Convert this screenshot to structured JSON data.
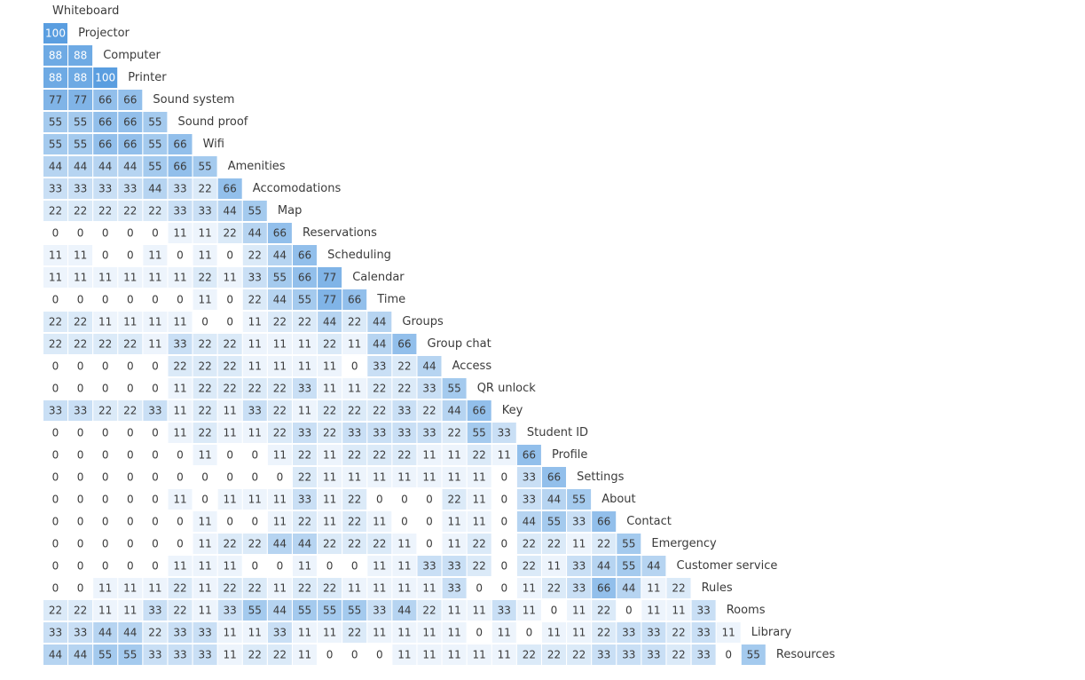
{
  "chart_data": {
    "type": "heatmap",
    "layout": "lower-triangular similarity matrix",
    "value_range": [
      0,
      100
    ],
    "color_scale": {
      "low": "#ffffff",
      "high": "#5a9ee0"
    },
    "labels": [
      "Whiteboard",
      "Projector",
      "Computer",
      "Printer",
      "Sound system",
      "Sound proof",
      "Wifi",
      "Amenities",
      "Accomodations",
      "Map",
      "Reservations",
      "Scheduling",
      "Calendar",
      "Time",
      "Groups",
      "Group chat",
      "Access",
      "QR unlock",
      "Key",
      "Student ID",
      "Profile",
      "Settings",
      "About",
      "Contact",
      "Emergency",
      "Customer service",
      "Rules",
      "Rooms",
      "Library",
      "Resources"
    ],
    "rows": [
      [],
      [
        100
      ],
      [
        88,
        88
      ],
      [
        88,
        88,
        100
      ],
      [
        77,
        77,
        66,
        66
      ],
      [
        55,
        55,
        66,
        66,
        55
      ],
      [
        55,
        55,
        66,
        66,
        55,
        66
      ],
      [
        44,
        44,
        44,
        44,
        55,
        66,
        55
      ],
      [
        33,
        33,
        33,
        33,
        44,
        33,
        22,
        66
      ],
      [
        22,
        22,
        22,
        22,
        22,
        33,
        33,
        44,
        55
      ],
      [
        0,
        0,
        0,
        0,
        0,
        11,
        11,
        22,
        44,
        66
      ],
      [
        11,
        11,
        0,
        0,
        11,
        0,
        11,
        0,
        22,
        44,
        66
      ],
      [
        11,
        11,
        11,
        11,
        11,
        11,
        22,
        11,
        33,
        55,
        66,
        77
      ],
      [
        0,
        0,
        0,
        0,
        0,
        0,
        11,
        0,
        22,
        44,
        55,
        77,
        66
      ],
      [
        22,
        22,
        11,
        11,
        11,
        11,
        0,
        0,
        11,
        22,
        22,
        44,
        22,
        44
      ],
      [
        22,
        22,
        22,
        22,
        11,
        33,
        22,
        22,
        11,
        11,
        11,
        22,
        11,
        44,
        66
      ],
      [
        0,
        0,
        0,
        0,
        0,
        22,
        22,
        22,
        11,
        11,
        11,
        11,
        0,
        33,
        22,
        44
      ],
      [
        0,
        0,
        0,
        0,
        0,
        11,
        22,
        22,
        22,
        22,
        33,
        11,
        11,
        22,
        22,
        33,
        55
      ],
      [
        33,
        33,
        22,
        22,
        33,
        11,
        22,
        11,
        33,
        22,
        11,
        22,
        22,
        22,
        33,
        22,
        44,
        66
      ],
      [
        0,
        0,
        0,
        0,
        0,
        11,
        22,
        11,
        11,
        22,
        33,
        22,
        33,
        33,
        33,
        33,
        22,
        55,
        33
      ],
      [
        0,
        0,
        0,
        0,
        0,
        0,
        11,
        0,
        0,
        11,
        22,
        11,
        22,
        22,
        22,
        11,
        11,
        22,
        11,
        66
      ],
      [
        0,
        0,
        0,
        0,
        0,
        0,
        0,
        0,
        0,
        0,
        22,
        11,
        11,
        11,
        11,
        11,
        11,
        11,
        0,
        33,
        66
      ],
      [
        0,
        0,
        0,
        0,
        0,
        11,
        0,
        11,
        11,
        11,
        33,
        11,
        22,
        0,
        0,
        0,
        22,
        11,
        0,
        33,
        44,
        55
      ],
      [
        0,
        0,
        0,
        0,
        0,
        0,
        11,
        0,
        0,
        11,
        22,
        11,
        22,
        11,
        0,
        0,
        11,
        11,
        0,
        44,
        55,
        33,
        66
      ],
      [
        0,
        0,
        0,
        0,
        0,
        0,
        11,
        22,
        22,
        44,
        44,
        22,
        22,
        22,
        11,
        0,
        11,
        22,
        0,
        22,
        22,
        11,
        22,
        55
      ],
      [
        0,
        0,
        0,
        0,
        0,
        11,
        11,
        11,
        0,
        0,
        11,
        0,
        0,
        11,
        11,
        33,
        33,
        22,
        0,
        22,
        11,
        33,
        44,
        55,
        44
      ],
      [
        0,
        0,
        11,
        11,
        11,
        22,
        11,
        22,
        22,
        11,
        22,
        22,
        11,
        11,
        11,
        11,
        33,
        0,
        0,
        11,
        22,
        33,
        66,
        44,
        11,
        22
      ],
      [
        22,
        22,
        11,
        11,
        33,
        22,
        11,
        33,
        55,
        44,
        55,
        55,
        55,
        33,
        44,
        22,
        11,
        11,
        33,
        11,
        0,
        11,
        22,
        0,
        11,
        11,
        33
      ],
      [
        33,
        33,
        44,
        44,
        22,
        33,
        33,
        11,
        11,
        33,
        11,
        11,
        22,
        11,
        11,
        11,
        11,
        0,
        11,
        0,
        11,
        11,
        22,
        33,
        33,
        22,
        33,
        11
      ],
      [
        44,
        44,
        55,
        55,
        33,
        33,
        33,
        11,
        22,
        22,
        11,
        0,
        0,
        0,
        11,
        11,
        11,
        11,
        11,
        22,
        22,
        22,
        33,
        33,
        33,
        22,
        33,
        0,
        55
      ]
    ]
  }
}
